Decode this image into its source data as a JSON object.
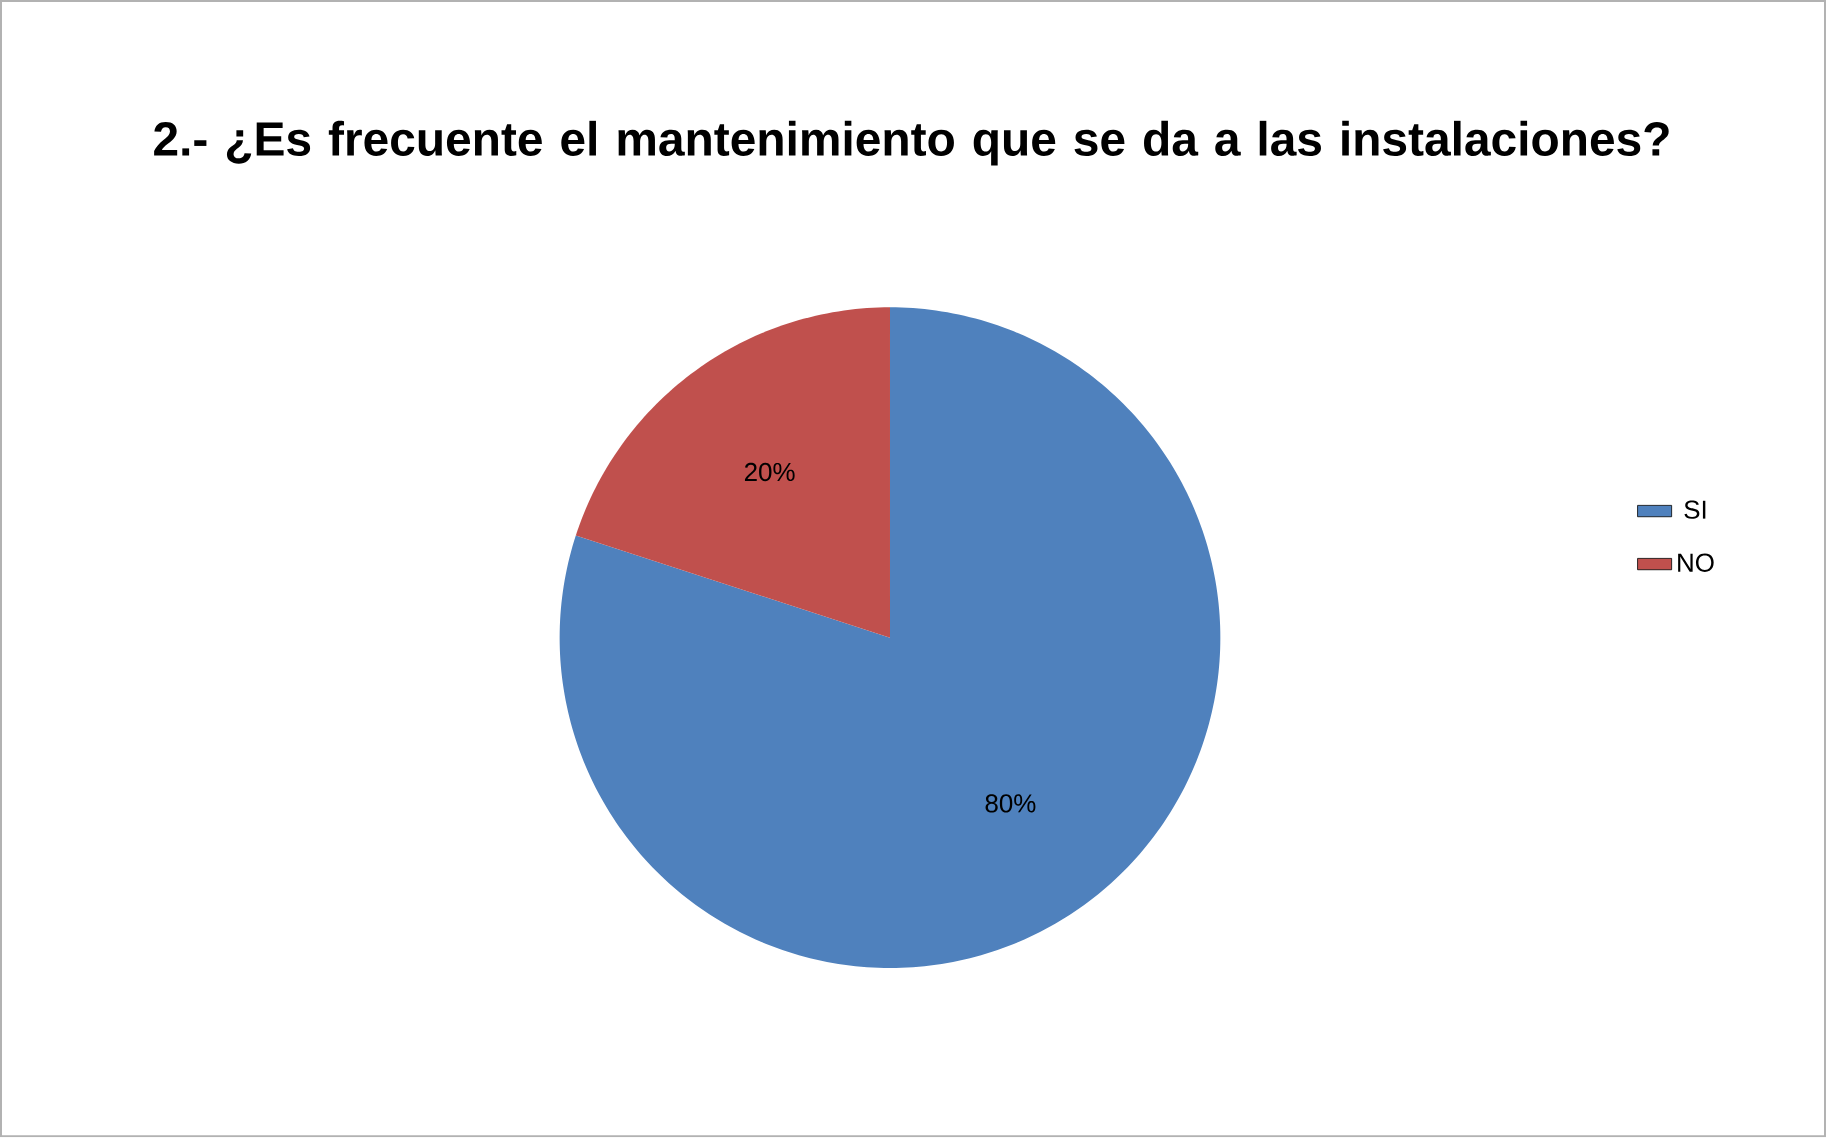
{
  "chart_data": {
    "type": "pie",
    "title": "2.- ¿Es frecuente el mantenimiento que se da a las instalaciones?",
    "categories": [
      "SI",
      "NO"
    ],
    "values": [
      80,
      20
    ],
    "colors": [
      "#4f81bd",
      "#c0504d"
    ],
    "value_labels": [
      "80%",
      "20%"
    ],
    "legend": "right"
  }
}
